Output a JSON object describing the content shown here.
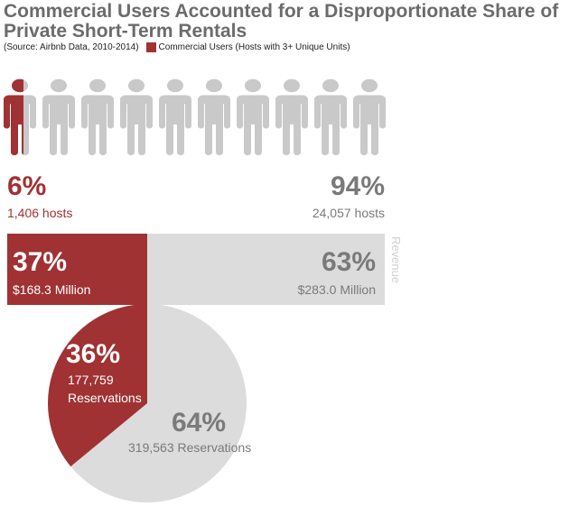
{
  "title": "Commercial Users Accounted for a Disproportionate Share of Private Short-Term Rentals",
  "source": "(Source: Airbnb Data, 2010-2014)",
  "legend": {
    "commercial_label": "Commercial Users (Hosts with 3+ Unique Units)"
  },
  "colors": {
    "commercial": "#a03234",
    "other": "#dcdcdc",
    "other_text": "#7a7a7a",
    "person_gray": "#c9c9c9"
  },
  "hosts": {
    "commercial_pct": "6%",
    "commercial_count": "1,406 hosts",
    "other_pct": "94%",
    "other_count": "24,057 hosts"
  },
  "revenue": {
    "label": "Revenue",
    "commercial_pct": "37%",
    "commercial_amount": "$168.3 Million",
    "other_pct": "63%",
    "other_amount": "$283.0 Million"
  },
  "reservations": {
    "commercial_pct": "36%",
    "commercial_count_line1": "177,759",
    "commercial_count_line2": "Reservations",
    "other_pct": "64%",
    "other_count": "319,563 Reservations"
  },
  "chart_data": [
    {
      "type": "pictograph",
      "icon": "person-icon",
      "total_icons": 10,
      "series": [
        {
          "name": "Commercial Users (Hosts with 3+ Unique Units)",
          "percent": 6,
          "count": 1406
        },
        {
          "name": "",
          "percent": 94,
          "count": 24057
        }
      ]
    },
    {
      "type": "bar",
      "orientation": "horizontal-stacked",
      "ylabel": "Revenue",
      "series": [
        {
          "name": "Commercial Users (Hosts with 3+ Unique Units)",
          "percent": 37,
          "value_million_usd": 168.3
        },
        {
          "name": "",
          "percent": 63,
          "value_million_usd": 283.0
        }
      ]
    },
    {
      "type": "pie",
      "slices": [
        {
          "name": "Commercial Users (Hosts with 3+ Unique Units)",
          "percent": 36,
          "value": 177759
        },
        {
          "name": "",
          "percent": 64,
          "value": 319563
        }
      ]
    }
  ]
}
